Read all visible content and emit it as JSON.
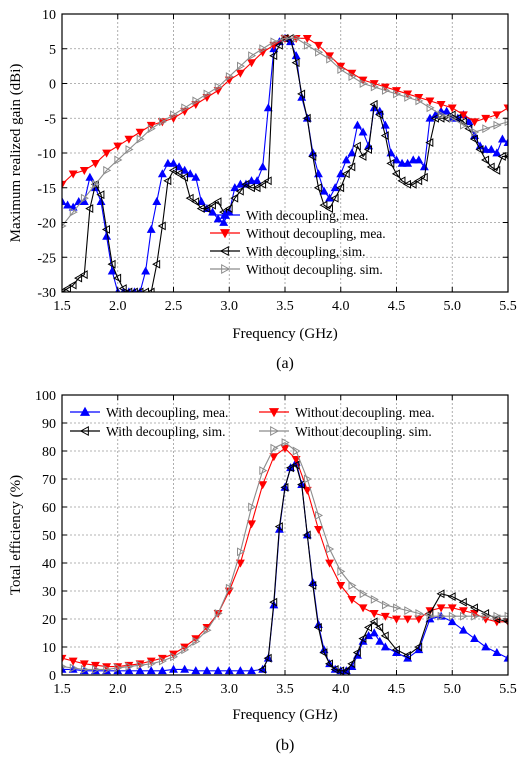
{
  "chart_data": [
    {
      "type": "line",
      "panel_label": "(a)",
      "xlabel": "Frequency (GHz)",
      "ylabel": "Maximum realized gain (dBi)",
      "xlim": [
        1.5,
        5.5
      ],
      "ylim": [
        -30,
        10
      ],
      "xticks": [
        1.5,
        2.0,
        2.5,
        3.0,
        3.5,
        4.0,
        4.5,
        5.0,
        5.5
      ],
      "xtick_labels": [
        "1.5",
        "2.0",
        "2.5",
        "3.0",
        "3.5",
        "4.0",
        "4.5",
        "5.0",
        "5.5"
      ],
      "yticks": [
        -30,
        -25,
        -20,
        -15,
        -10,
        -5,
        0,
        5,
        10
      ],
      "ytick_labels": [
        "-30",
        "-25",
        "-20",
        "-15",
        "-10",
        "-5",
        "0",
        "5",
        "10"
      ],
      "grid": true,
      "legend_position": "bottom-center",
      "series": [
        {
          "name": "With decoupling, mea.",
          "color": "#0000ff",
          "marker": "triangle-up",
          "x": [
            1.5,
            1.55,
            1.6,
            1.65,
            1.7,
            1.75,
            1.8,
            1.85,
            1.9,
            1.95,
            2.0,
            2.05,
            2.1,
            2.15,
            2.2,
            2.25,
            2.3,
            2.35,
            2.4,
            2.45,
            2.5,
            2.55,
            2.6,
            2.65,
            2.7,
            2.75,
            2.8,
            2.85,
            2.9,
            2.95,
            3.0,
            3.05,
            3.1,
            3.15,
            3.2,
            3.25,
            3.3,
            3.35,
            3.4,
            3.45,
            3.5,
            3.55,
            3.6,
            3.65,
            3.7,
            3.75,
            3.8,
            3.85,
            3.9,
            3.95,
            4.0,
            4.05,
            4.1,
            4.15,
            4.2,
            4.25,
            4.3,
            4.35,
            4.4,
            4.45,
            4.5,
            4.55,
            4.6,
            4.65,
            4.7,
            4.75,
            4.8,
            4.85,
            4.9,
            4.95,
            5.0,
            5.05,
            5.1,
            5.15,
            5.2,
            5.25,
            5.3,
            5.35,
            5.4,
            5.45,
            5.5
          ],
          "y": [
            -17,
            -17.5,
            -17.8,
            -17,
            -17,
            -13.5,
            -15,
            -17,
            -22,
            -27,
            -30,
            -30,
            -30,
            -30,
            -30,
            -27,
            -21,
            -17,
            -13,
            -11.5,
            -11.5,
            -12,
            -12.5,
            -13,
            -13.5,
            -17,
            -18,
            -18.5,
            -19.5,
            -20,
            -18.5,
            -15,
            -14.5,
            -14.5,
            -14,
            -14,
            -12,
            -3.5,
            5,
            6,
            6.5,
            6,
            4,
            -2,
            -5,
            -10,
            -13,
            -15.5,
            -16.5,
            -15,
            -13,
            -11,
            -10,
            -6,
            -7,
            -9,
            -3.5,
            -4,
            -6,
            -10,
            -11,
            -11.5,
            -11.5,
            -11,
            -11,
            -12,
            -5,
            -4.5,
            -4,
            -4,
            -5,
            -5,
            -4.5,
            -5.5,
            -7.5,
            -9,
            -9.5,
            -9.5,
            -10,
            -8,
            -8.5
          ]
        },
        {
          "name": "Without decoupling, mea.",
          "color": "#ff0000",
          "marker": "triangle-down",
          "x": [
            1.5,
            1.6,
            1.7,
            1.8,
            1.9,
            2.0,
            2.1,
            2.2,
            2.3,
            2.4,
            2.5,
            2.6,
            2.7,
            2.8,
            2.9,
            3.0,
            3.1,
            3.2,
            3.3,
            3.4,
            3.5,
            3.6,
            3.7,
            3.8,
            3.9,
            4.0,
            4.1,
            4.2,
            4.3,
            4.4,
            4.5,
            4.6,
            4.7,
            4.8,
            4.9,
            5.0,
            5.1,
            5.2,
            5.3,
            5.4,
            5.5
          ],
          "y": [
            -14.5,
            -13,
            -12.5,
            -11.5,
            -10,
            -9,
            -8,
            -7,
            -6,
            -5.5,
            -5,
            -4,
            -3,
            -2,
            -1,
            0.5,
            1.5,
            3,
            4.5,
            5.5,
            6.5,
            6.5,
            6.5,
            5.5,
            4,
            2.5,
            1.5,
            0.5,
            0,
            -0.5,
            -1,
            -1.5,
            -2,
            -2.5,
            -3,
            -3.5,
            -4.5,
            -5.5,
            -5,
            -4.5,
            -3.5
          ]
        },
        {
          "name": "With decoupling, sim.",
          "color": "#000000",
          "marker": "triangle-left",
          "x": [
            1.5,
            1.55,
            1.6,
            1.65,
            1.7,
            1.75,
            1.8,
            1.85,
            1.9,
            1.95,
            2.0,
            2.05,
            2.1,
            2.15,
            2.2,
            2.25,
            2.3,
            2.35,
            2.4,
            2.45,
            2.5,
            2.55,
            2.6,
            2.65,
            2.7,
            2.75,
            2.8,
            2.85,
            2.9,
            2.95,
            3.0,
            3.05,
            3.1,
            3.15,
            3.2,
            3.25,
            3.3,
            3.35,
            3.4,
            3.45,
            3.5,
            3.55,
            3.6,
            3.65,
            3.7,
            3.75,
            3.8,
            3.85,
            3.9,
            3.95,
            4.0,
            4.05,
            4.1,
            4.15,
            4.2,
            4.25,
            4.3,
            4.35,
            4.4,
            4.45,
            4.5,
            4.55,
            4.6,
            4.65,
            4.7,
            4.75,
            4.8,
            4.85,
            4.9,
            4.95,
            5.0,
            5.05,
            5.1,
            5.15,
            5.2,
            5.25,
            5.3,
            5.35,
            5.4,
            5.45,
            5.5
          ],
          "y": [
            -30,
            -29.5,
            -29,
            -28,
            -27.5,
            -18,
            -14.5,
            -16,
            -21,
            -26,
            -28,
            -29.5,
            -30,
            -30,
            -30,
            -30,
            -30,
            -26,
            -20.5,
            -14,
            -12.5,
            -13,
            -13.5,
            -16.5,
            -17,
            -18,
            -18,
            -17.5,
            -17,
            -18.5,
            -18,
            -16.5,
            -15.5,
            -14.5,
            -15,
            -15,
            -14.5,
            -14,
            4,
            5.5,
            6.5,
            6.5,
            3,
            -1.5,
            -5,
            -10.5,
            -15,
            -17.5,
            -18,
            -16.5,
            -15,
            -13,
            -12,
            -9,
            -10.5,
            -9.5,
            -3,
            -4.5,
            -7.5,
            -11.5,
            -13,
            -14,
            -14.5,
            -14.5,
            -14,
            -13.5,
            -8.5,
            -5,
            -5,
            -5,
            -4.5,
            -5,
            -5.5,
            -6.5,
            -8,
            -9.5,
            -11,
            -12,
            -12.5,
            -10.5,
            -10.5
          ]
        },
        {
          "name": "Without decoupling. sim.",
          "color": "#8c8c8c",
          "marker": "triangle-right",
          "x": [
            1.5,
            1.6,
            1.7,
            1.8,
            1.9,
            2.0,
            2.1,
            2.2,
            2.3,
            2.4,
            2.5,
            2.6,
            2.7,
            2.8,
            2.9,
            3.0,
            3.1,
            3.2,
            3.3,
            3.4,
            3.5,
            3.6,
            3.7,
            3.8,
            3.9,
            4.0,
            4.1,
            4.2,
            4.3,
            4.4,
            4.5,
            4.6,
            4.7,
            4.8,
            4.9,
            5.0,
            5.1,
            5.2,
            5.3,
            5.4,
            5.5
          ],
          "y": [
            -20.5,
            -18.5,
            -16.5,
            -14.5,
            -12.5,
            -11,
            -9.5,
            -8,
            -6.5,
            -5.5,
            -4.5,
            -3.5,
            -2.5,
            -1.5,
            -0.5,
            1,
            2.5,
            4,
            5,
            6,
            6.5,
            6.5,
            5.5,
            4.5,
            3.5,
            2,
            1,
            0,
            -0.5,
            -1,
            -1.5,
            -2,
            -2.5,
            -3.5,
            -4.5,
            -5,
            -6,
            -7,
            -6.5,
            -6,
            -5.5
          ]
        }
      ]
    },
    {
      "type": "line",
      "panel_label": "(b)",
      "xlabel": "Frequency (GHz)",
      "ylabel": "Total efficiency (%)",
      "xlim": [
        1.5,
        5.5
      ],
      "ylim": [
        0,
        100
      ],
      "xticks": [
        1.5,
        2.0,
        2.5,
        3.0,
        3.5,
        4.0,
        4.5,
        5.0,
        5.5
      ],
      "xtick_labels": [
        "1.5",
        "2.0",
        "2.5",
        "3.0",
        "3.5",
        "4.0",
        "4.5",
        "5.0",
        "5.5"
      ],
      "yticks": [
        0,
        10,
        20,
        30,
        40,
        50,
        60,
        70,
        80,
        90,
        100
      ],
      "ytick_labels": [
        "0",
        "10",
        "20",
        "30",
        "40",
        "50",
        "60",
        "70",
        "80",
        "90",
        "100"
      ],
      "grid": true,
      "legend_position": "top",
      "series": [
        {
          "name": "With decoupling, mea.",
          "color": "#0000ff",
          "marker": "triangle-up",
          "x": [
            1.5,
            1.6,
            1.7,
            1.8,
            1.9,
            2.0,
            2.1,
            2.2,
            2.3,
            2.4,
            2.5,
            2.6,
            2.7,
            2.8,
            2.9,
            3.0,
            3.1,
            3.2,
            3.3,
            3.35,
            3.4,
            3.45,
            3.5,
            3.55,
            3.6,
            3.65,
            3.7,
            3.75,
            3.8,
            3.85,
            3.9,
            3.95,
            4.0,
            4.05,
            4.1,
            4.15,
            4.2,
            4.25,
            4.3,
            4.35,
            4.4,
            4.5,
            4.6,
            4.7,
            4.8,
            4.9,
            5.0,
            5.1,
            5.2,
            5.3,
            5.4,
            5.5
          ],
          "y": [
            2,
            2,
            1.5,
            1.5,
            1.5,
            1.5,
            1.5,
            1.5,
            1.5,
            1.5,
            2,
            2,
            1.5,
            1.5,
            1.5,
            1.5,
            1.5,
            1.5,
            2,
            6,
            25,
            52,
            67,
            74,
            76,
            68,
            50,
            33,
            18,
            9,
            4,
            2,
            1.5,
            1.5,
            3,
            7,
            12,
            14,
            15,
            12,
            10,
            8,
            6,
            9,
            20,
            21,
            19,
            16,
            13,
            10,
            8,
            6
          ]
        },
        {
          "name": "Without decoupling. mea.",
          "color": "#ff0000",
          "marker": "triangle-down",
          "x": [
            1.5,
            1.6,
            1.7,
            1.8,
            1.9,
            2.0,
            2.1,
            2.2,
            2.3,
            2.4,
            2.5,
            2.6,
            2.7,
            2.8,
            2.9,
            3.0,
            3.1,
            3.2,
            3.3,
            3.4,
            3.5,
            3.6,
            3.7,
            3.8,
            3.9,
            4.0,
            4.1,
            4.2,
            4.3,
            4.4,
            4.5,
            4.6,
            4.7,
            4.8,
            4.9,
            5.0,
            5.1,
            5.2,
            5.3,
            5.4,
            5.5
          ],
          "y": [
            6,
            5,
            4,
            3.5,
            3,
            3,
            3.5,
            4,
            5,
            6,
            7.5,
            10,
            13,
            17,
            22,
            30,
            40,
            54,
            68,
            78,
            81,
            77,
            66,
            52,
            40,
            32,
            27,
            24,
            22,
            21,
            20,
            20,
            20,
            23,
            24,
            24,
            23,
            22,
            20,
            19,
            19
          ]
        },
        {
          "name": "With decoupling, sim.",
          "color": "#000000",
          "marker": "triangle-left",
          "x": [
            3.3,
            3.35,
            3.4,
            3.45,
            3.5,
            3.55,
            3.6,
            3.65,
            3.7,
            3.75,
            3.8,
            3.85,
            3.9,
            3.95,
            4.0,
            4.05,
            4.1,
            4.15,
            4.2,
            4.25,
            4.3,
            4.35,
            4.4,
            4.5,
            4.6,
            4.7,
            4.8,
            4.9,
            5.0,
            5.1,
            5.2,
            5.3,
            5.4,
            5.5
          ],
          "y": [
            2,
            6,
            26,
            53,
            67,
            74,
            75,
            68,
            50,
            32,
            17,
            8,
            4,
            2,
            1.5,
            1.5,
            4,
            8,
            13,
            17,
            19,
            17,
            14,
            9,
            7,
            10,
            22,
            29,
            28,
            26,
            24,
            22,
            20,
            19
          ]
        },
        {
          "name": "Without decoupling. sim.",
          "color": "#8c8c8c",
          "marker": "triangle-right",
          "x": [
            1.5,
            1.6,
            1.7,
            1.8,
            1.9,
            2.0,
            2.1,
            2.2,
            2.3,
            2.4,
            2.5,
            2.6,
            2.7,
            2.8,
            2.9,
            3.0,
            3.1,
            3.2,
            3.3,
            3.4,
            3.5,
            3.6,
            3.7,
            3.8,
            3.9,
            4.0,
            4.1,
            4.2,
            4.3,
            4.4,
            4.5,
            4.6,
            4.7,
            4.8,
            4.9,
            5.0,
            5.1,
            5.2,
            5.3,
            5.4,
            5.5
          ],
          "y": [
            3,
            2.5,
            2,
            2,
            2,
            2.5,
            3,
            3.5,
            4,
            5,
            6.5,
            9,
            12,
            16,
            22,
            31,
            44,
            60,
            73,
            81,
            83,
            80,
            70,
            57,
            45,
            37,
            32,
            29,
            27,
            25,
            24,
            23,
            22,
            21,
            21,
            21,
            21,
            21,
            21,
            21,
            21
          ]
        }
      ]
    }
  ]
}
